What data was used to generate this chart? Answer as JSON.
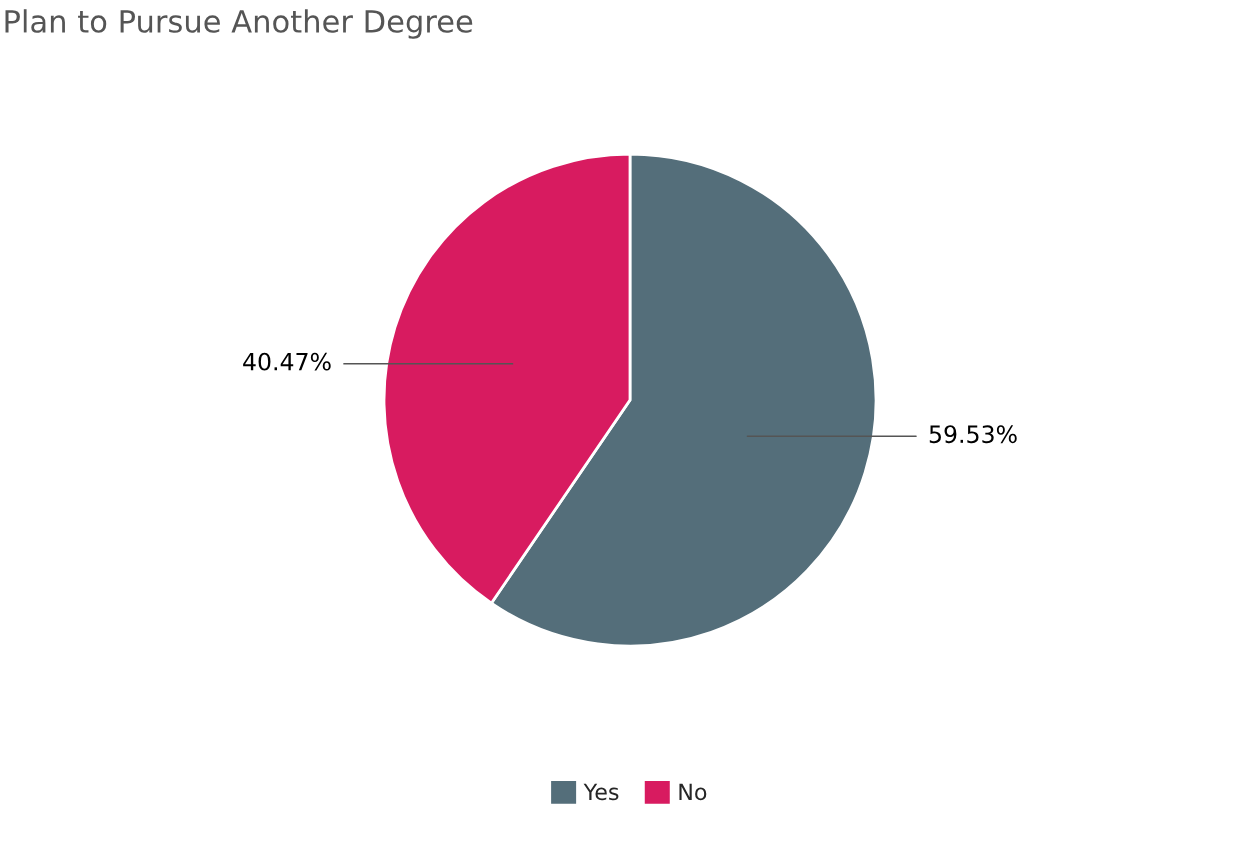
{
  "chart_data": {
    "type": "pie",
    "title": "Plan to Pursue Another Degree",
    "categories": [
      "Yes",
      "No"
    ],
    "values": [
      59.53,
      40.47
    ],
    "colors": [
      "#546e7a",
      "#d81b60"
    ],
    "value_labels": [
      "59.53%",
      "40.47%"
    ],
    "legend": "bottom"
  }
}
